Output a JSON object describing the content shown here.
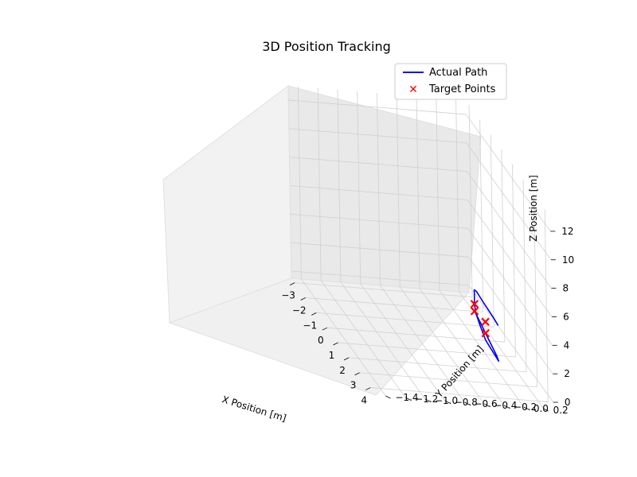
{
  "chart_data": {
    "type": "scatter",
    "projection": "3d",
    "title": "3D Position Tracking",
    "xlabel": "X Position [m]",
    "ylabel": "Y Position [m]",
    "zlabel": "Z Position [m]",
    "xlim": [
      -3.3,
      4.5
    ],
    "ylim": [
      -1.5,
      0.3
    ],
    "zlim": [
      -0.5,
      13
    ],
    "xticks": [
      "−3",
      "−2",
      "−1",
      "0",
      "1",
      "2",
      "3",
      "4"
    ],
    "yticks": [
      "−1.4",
      "−1.2",
      "−1.0",
      "−0.8",
      "−0.6",
      "−0.4",
      "−0.2",
      "0.0",
      "0.2"
    ],
    "zticks": [
      "0",
      "2",
      "4",
      "6",
      "8",
      "10",
      "12"
    ],
    "grid": true,
    "legend_position": "top-right",
    "series": [
      {
        "name": "Actual Path",
        "kind": "line",
        "color": "#0000ff",
        "points": [
          [
            0,
            0,
            1.5
          ],
          [
            1.0,
            0,
            1.0
          ],
          [
            2.0,
            0,
            0.5
          ],
          [
            2.2,
            0,
            0.3
          ],
          [
            1.0,
            0,
            0.5
          ],
          [
            0.5,
            0,
            1.0
          ],
          [
            0.1,
            0,
            1.5
          ],
          [
            0,
            0,
            2.0
          ],
          [
            0,
            0,
            2.5
          ],
          [
            0,
            0,
            3.0
          ],
          [
            0.2,
            0,
            3.1
          ],
          [
            0.8,
            0,
            3.0
          ],
          [
            1.8,
            0,
            2.9
          ],
          [
            2.2,
            0,
            2.8
          ]
        ]
      },
      {
        "name": "Target Points",
        "kind": "scatter",
        "marker": "x",
        "color": "#ff0000",
        "points": [
          [
            0,
            0,
            1.5
          ],
          [
            0,
            0,
            2.0
          ],
          [
            1.0,
            0,
            1.8
          ],
          [
            1.0,
            0,
            1.0
          ]
        ]
      }
    ]
  }
}
